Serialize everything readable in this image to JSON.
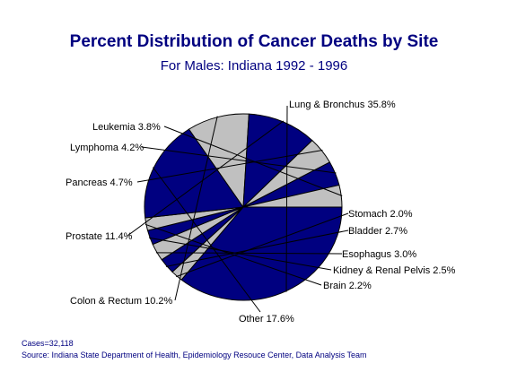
{
  "chart_data": {
    "type": "pie",
    "title": "Percent Distribution of Cancer Deaths by Site",
    "subtitle": "For Males:  Indiana 1992 - 1996",
    "slices": [
      {
        "label": "Lung & Bronchus",
        "value": 35.8,
        "display": "Lung & Bronchus  35.8%",
        "color": "#000080"
      },
      {
        "label": "Stomach",
        "value": 2.0,
        "display": "Stomach  2.0%",
        "color": "#c0c0c0"
      },
      {
        "label": "Bladder",
        "value": 2.7,
        "display": "Bladder  2.7%",
        "color": "#000080"
      },
      {
        "label": "Esophagus",
        "value": 3.0,
        "display": "Esophagus  3.0%",
        "color": "#c0c0c0"
      },
      {
        "label": "Kidney & Renal Pelvis",
        "value": 2.5,
        "display": "Kidney & Renal Pelvis  2.5%",
        "color": "#000080"
      },
      {
        "label": "Brain",
        "value": 2.2,
        "display": "Brain  2.2%",
        "color": "#c0c0c0"
      },
      {
        "label": "Other",
        "value": 17.6,
        "display": "Other  17.6%",
        "color": "#000080"
      },
      {
        "label": "Colon & Rectum",
        "value": 10.2,
        "display": "Colon & Rectum  10.2%",
        "color": "#c0c0c0"
      },
      {
        "label": "Prostate",
        "value": 11.4,
        "display": "Prostate  11.4%",
        "color": "#000080"
      },
      {
        "label": "Pancreas",
        "value": 4.7,
        "display": "Pancreas  4.7%",
        "color": "#c0c0c0"
      },
      {
        "label": "Lymphoma",
        "value": 4.2,
        "display": "Lymphoma  4.2%",
        "color": "#000080"
      },
      {
        "label": "Leukemia",
        "value": 3.8,
        "display": "Leukemia  3.8%",
        "color": "#c0c0c0"
      }
    ]
  },
  "footnotes": {
    "cases": "Cases=32,118",
    "source": "Source:  Indiana State Department of Health, Epidemiology Resouce Center, Data Analysis Team"
  }
}
